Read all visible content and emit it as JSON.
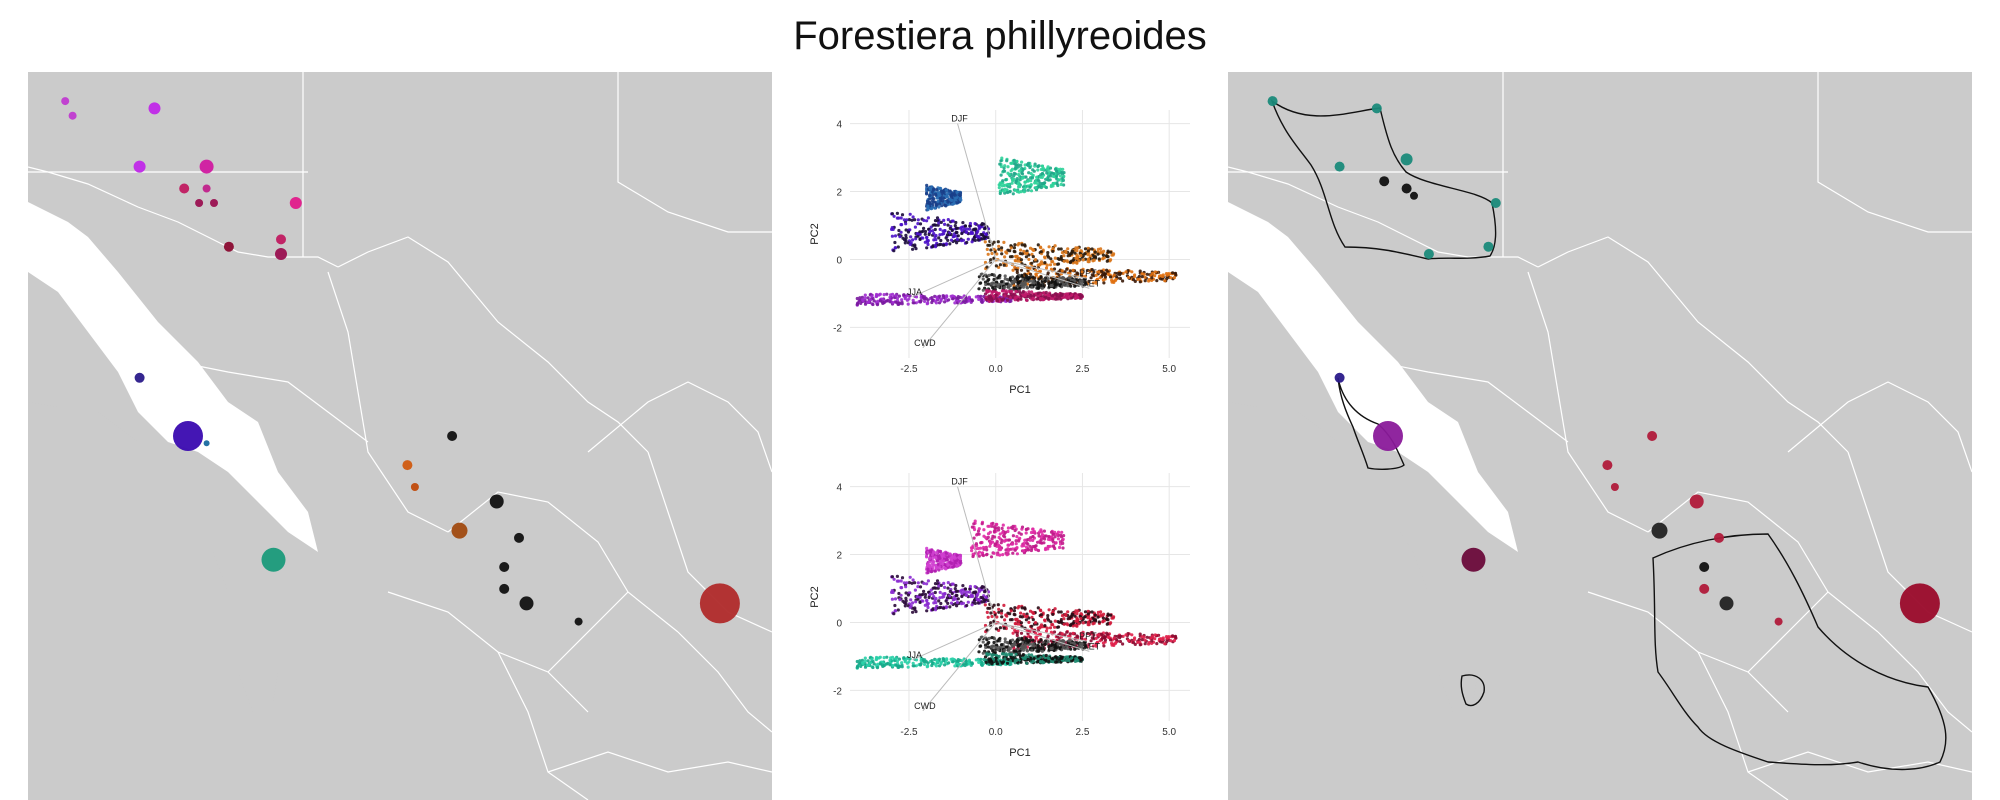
{
  "figure": {
    "title": "Forestiera phillyreoides"
  },
  "colors": {
    "land": "#cbcbcb",
    "water": "#ffffff",
    "borders": "#ffffff",
    "hull": "#111111",
    "grid": "#e6e6e6"
  },
  "chart_data": [
    {
      "type": "scatter",
      "panel": "pca-top",
      "xlabel": "PC1",
      "ylabel": "PC2",
      "xlim": [
        -4.2,
        5.6
      ],
      "ylim": [
        -2.9,
        4.4
      ],
      "xticks": [
        {
          "value": -2.5,
          "label": "-2.5"
        },
        {
          "value": 0,
          "label": "0.0"
        },
        {
          "value": 2.5,
          "label": "2.5"
        },
        {
          "value": 5,
          "label": "5.0"
        }
      ],
      "yticks": [
        {
          "value": -2,
          "label": "-2"
        },
        {
          "value": 0,
          "label": "0"
        },
        {
          "value": 2,
          "label": "2"
        },
        {
          "value": 4,
          "label": "4"
        }
      ],
      "grid": true,
      "loadings": [
        {
          "label": "DJF",
          "x": -1.1,
          "y": 4.0
        },
        {
          "label": "PPT",
          "x": 2.6,
          "y": -0.55
        },
        {
          "label": "AET",
          "x": 2.7,
          "y": -0.85
        },
        {
          "label": "JJA",
          "x": -2.4,
          "y": -1.1
        },
        {
          "label": "CWD",
          "x": -2.1,
          "y": -2.6
        }
      ],
      "clusters": [
        {
          "x": [
            0.1,
            2.0
          ],
          "y": [
            1.85,
            3.0
          ],
          "color": "#1fa88a",
          "color2": "#2fd39a"
        },
        {
          "x": [
            -2.0,
            -1.0
          ],
          "y": [
            1.45,
            2.2
          ],
          "color": "#2a6fb5",
          "color2": "#1a3f8a"
        },
        {
          "x": [
            -3.0,
            -0.2
          ],
          "y": [
            0.2,
            1.4
          ],
          "color": "#1a0a3a",
          "color2": "#4a10c8"
        },
        {
          "x": [
            -0.3,
            3.4
          ],
          "y": [
            -0.3,
            0.55
          ],
          "color": "#2a1a0a",
          "color2": "#d9751a"
        },
        {
          "x": [
            0.5,
            5.2
          ],
          "y": [
            -0.8,
            -0.2
          ],
          "color": "#3a1a08",
          "color2": "#e0700f"
        },
        {
          "x": [
            -0.5,
            2.6
          ],
          "y": [
            -0.95,
            -0.4
          ],
          "color": "#111111",
          "color2": "#555555"
        },
        {
          "x": [
            -4.0,
            0.5
          ],
          "y": [
            -1.35,
            -1.0
          ],
          "color": "#7a1aa0",
          "color2": "#a02cd0"
        },
        {
          "x": [
            -0.3,
            2.5
          ],
          "y": [
            -1.25,
            -0.9
          ],
          "color": "#8a1050",
          "color2": "#c01a6a"
        }
      ]
    },
    {
      "type": "scatter",
      "panel": "pca-bottom",
      "xlabel": "PC1",
      "ylabel": "PC2",
      "xlim": [
        -4.2,
        5.6
      ],
      "ylim": [
        -2.9,
        4.4
      ],
      "xticks": [
        {
          "value": -2.5,
          "label": "-2.5"
        },
        {
          "value": 0,
          "label": "0.0"
        },
        {
          "value": 2.5,
          "label": "2.5"
        },
        {
          "value": 5,
          "label": "5.0"
        }
      ],
      "yticks": [
        {
          "value": -2,
          "label": "-2"
        },
        {
          "value": 0,
          "label": "0"
        },
        {
          "value": 2,
          "label": "2"
        },
        {
          "value": 4,
          "label": "4"
        }
      ],
      "grid": true,
      "loadings": [
        {
          "label": "DJF",
          "x": -1.1,
          "y": 4.0
        },
        {
          "label": "PPT",
          "x": 2.6,
          "y": -0.55
        },
        {
          "label": "AET",
          "x": 2.7,
          "y": -0.85
        },
        {
          "label": "JJA",
          "x": -2.4,
          "y": -1.1
        },
        {
          "label": "CWD",
          "x": -2.1,
          "y": -2.6
        }
      ],
      "clusters": [
        {
          "x": [
            -0.7,
            2.0
          ],
          "y": [
            1.85,
            3.0
          ],
          "color": "#c01a8a",
          "color2": "#e02aa5"
        },
        {
          "x": [
            -2.0,
            -1.0
          ],
          "y": [
            1.45,
            2.2
          ],
          "color": "#b020b0",
          "color2": "#d040d0"
        },
        {
          "x": [
            -3.0,
            -0.2
          ],
          "y": [
            0.2,
            1.4
          ],
          "color": "#2a0a3a",
          "color2": "#8a2ad0"
        },
        {
          "x": [
            -0.3,
            3.4
          ],
          "y": [
            -0.3,
            0.55
          ],
          "color": "#2a0a14",
          "color2": "#d01a3a"
        },
        {
          "x": [
            0.5,
            5.2
          ],
          "y": [
            -0.8,
            -0.2
          ],
          "color": "#8a0a30",
          "color2": "#e0204a"
        },
        {
          "x": [
            -0.5,
            2.6
          ],
          "y": [
            -0.95,
            -0.4
          ],
          "color": "#111111",
          "color2": "#555555"
        },
        {
          "x": [
            -4.0,
            0.5
          ],
          "y": [
            -1.35,
            -1.0
          ],
          "color": "#16a88a",
          "color2": "#2ad0a8"
        },
        {
          "x": [
            -0.3,
            2.5
          ],
          "y": [
            -1.25,
            -0.9
          ],
          "color": "#111111",
          "color2": "#1e8a70"
        }
      ]
    }
  ],
  "maps": {
    "left": {
      "points": [
        {
          "x": 0.05,
          "y": 0.04,
          "r": 4,
          "color": "#c03ad0"
        },
        {
          "x": 0.06,
          "y": 0.06,
          "r": 4,
          "color": "#c03ad0"
        },
        {
          "x": 0.17,
          "y": 0.05,
          "r": 6,
          "color": "#c028e8"
        },
        {
          "x": 0.15,
          "y": 0.13,
          "r": 6,
          "color": "#c028e8"
        },
        {
          "x": 0.24,
          "y": 0.13,
          "r": 7,
          "color": "#d01aa0"
        },
        {
          "x": 0.21,
          "y": 0.16,
          "r": 5,
          "color": "#c01a60"
        },
        {
          "x": 0.24,
          "y": 0.16,
          "r": 4,
          "color": "#c0208a"
        },
        {
          "x": 0.23,
          "y": 0.18,
          "r": 4,
          "color": "#9a1050"
        },
        {
          "x": 0.25,
          "y": 0.18,
          "r": 4,
          "color": "#9a1050"
        },
        {
          "x": 0.36,
          "y": 0.18,
          "r": 6,
          "color": "#e01a8a"
        },
        {
          "x": 0.27,
          "y": 0.24,
          "r": 5,
          "color": "#8a0a30"
        },
        {
          "x": 0.34,
          "y": 0.23,
          "r": 5,
          "color": "#c01a60"
        },
        {
          "x": 0.34,
          "y": 0.25,
          "r": 6,
          "color": "#9a1050"
        },
        {
          "x": 0.15,
          "y": 0.42,
          "r": 5,
          "color": "#2a1a8a"
        },
        {
          "x": 0.215,
          "y": 0.5,
          "r": 15,
          "color": "#3a0ab0"
        },
        {
          "x": 0.24,
          "y": 0.51,
          "r": 3,
          "color": "#1a6aa0"
        },
        {
          "x": 0.33,
          "y": 0.67,
          "r": 12,
          "color": "#1a9a7a"
        },
        {
          "x": 0.57,
          "y": 0.5,
          "r": 5,
          "color": "#111111"
        },
        {
          "x": 0.51,
          "y": 0.54,
          "r": 5,
          "color": "#d05a10"
        },
        {
          "x": 0.52,
          "y": 0.57,
          "r": 4,
          "color": "#c04a0a"
        },
        {
          "x": 0.63,
          "y": 0.59,
          "r": 7,
          "color": "#111111"
        },
        {
          "x": 0.58,
          "y": 0.63,
          "r": 8,
          "color": "#a04a10"
        },
        {
          "x": 0.66,
          "y": 0.64,
          "r": 5,
          "color": "#111111"
        },
        {
          "x": 0.64,
          "y": 0.68,
          "r": 5,
          "color": "#111111"
        },
        {
          "x": 0.64,
          "y": 0.71,
          "r": 5,
          "color": "#111111"
        },
        {
          "x": 0.67,
          "y": 0.73,
          "r": 7,
          "color": "#111111"
        },
        {
          "x": 0.74,
          "y": 0.755,
          "r": 4,
          "color": "#111111"
        },
        {
          "x": 0.93,
          "y": 0.73,
          "r": 20,
          "color": "#b02a2a"
        }
      ]
    },
    "right": {
      "points": [
        {
          "x": 0.06,
          "y": 0.04,
          "r": 5,
          "color": "#1a8a7a"
        },
        {
          "x": 0.2,
          "y": 0.05,
          "r": 5,
          "color": "#1a8a7a"
        },
        {
          "x": 0.24,
          "y": 0.12,
          "r": 6,
          "color": "#1a8a7a"
        },
        {
          "x": 0.15,
          "y": 0.13,
          "r": 5,
          "color": "#1a8a7a"
        },
        {
          "x": 0.21,
          "y": 0.15,
          "r": 5,
          "color": "#111111"
        },
        {
          "x": 0.24,
          "y": 0.16,
          "r": 5,
          "color": "#111111"
        },
        {
          "x": 0.25,
          "y": 0.17,
          "r": 4,
          "color": "#111111"
        },
        {
          "x": 0.36,
          "y": 0.18,
          "r": 5,
          "color": "#1a8a7a"
        },
        {
          "x": 0.35,
          "y": 0.24,
          "r": 5,
          "color": "#1a8a7a"
        },
        {
          "x": 0.27,
          "y": 0.25,
          "r": 5,
          "color": "#1a8a7a"
        },
        {
          "x": 0.15,
          "y": 0.42,
          "r": 5,
          "color": "#2a1a8a"
        },
        {
          "x": 0.215,
          "y": 0.5,
          "r": 15,
          "color": "#8a1a9a"
        },
        {
          "x": 0.33,
          "y": 0.67,
          "r": 12,
          "color": "#6a0a3a"
        },
        {
          "x": 0.57,
          "y": 0.5,
          "r": 5,
          "color": "#b01a3a"
        },
        {
          "x": 0.51,
          "y": 0.54,
          "r": 5,
          "color": "#b01a3a"
        },
        {
          "x": 0.52,
          "y": 0.57,
          "r": 4,
          "color": "#b01a3a"
        },
        {
          "x": 0.63,
          "y": 0.59,
          "r": 7,
          "color": "#b01a3a"
        },
        {
          "x": 0.58,
          "y": 0.63,
          "r": 8,
          "color": "#222222"
        },
        {
          "x": 0.66,
          "y": 0.64,
          "r": 5,
          "color": "#b01a3a"
        },
        {
          "x": 0.64,
          "y": 0.68,
          "r": 5,
          "color": "#111111"
        },
        {
          "x": 0.64,
          "y": 0.71,
          "r": 5,
          "color": "#b01a3a"
        },
        {
          "x": 0.67,
          "y": 0.73,
          "r": 7,
          "color": "#222222"
        },
        {
          "x": 0.74,
          "y": 0.755,
          "r": 4,
          "color": "#b01a3a"
        },
        {
          "x": 0.93,
          "y": 0.73,
          "r": 20,
          "color": "#9a0a2a"
        }
      ]
    }
  }
}
